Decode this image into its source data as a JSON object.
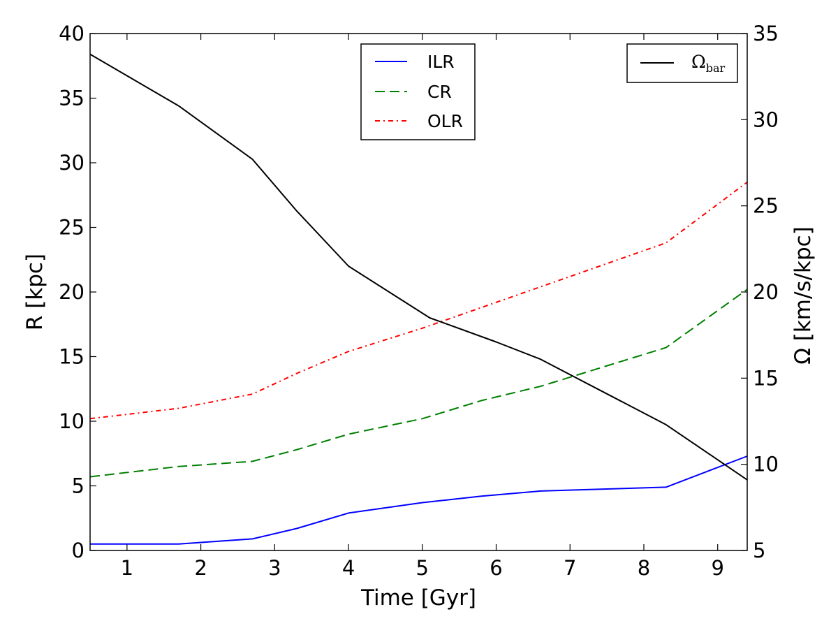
{
  "chart_data": {
    "type": "line",
    "xlabel": "Time [Gyr]",
    "ylabel_left": "R [kpc]",
    "ylabel_right": "Ω [km/s/kpc]",
    "xlim": [
      0.5,
      9.4
    ],
    "ylim_left": [
      0,
      40
    ],
    "ylim_right": [
      5,
      35
    ],
    "x_ticks": [
      "1",
      "2",
      "3",
      "4",
      "5",
      "6",
      "7",
      "8",
      "9"
    ],
    "y_ticks_left": [
      "0",
      "5",
      "10",
      "15",
      "20",
      "25",
      "30",
      "35",
      "40"
    ],
    "y_ticks_right": [
      "5",
      "10",
      "15",
      "20",
      "25",
      "30",
      "35"
    ],
    "grid": false,
    "series_left": [
      {
        "name": "ILR",
        "color": "#0000ff",
        "style": "solid",
        "x": [
          0.5,
          1.7,
          2.7,
          3.3,
          4.0,
          5.0,
          5.8,
          6.6,
          8.3,
          9.4
        ],
        "y": [
          0.5,
          0.5,
          0.9,
          1.7,
          2.9,
          3.7,
          4.2,
          4.6,
          4.9,
          7.3
        ]
      },
      {
        "name": "CR",
        "color": "#007f00",
        "style": "dashed",
        "x": [
          0.5,
          1.7,
          2.7,
          3.3,
          4.0,
          5.0,
          5.8,
          6.6,
          8.3,
          9.4
        ],
        "y": [
          5.7,
          6.5,
          6.9,
          7.8,
          9.0,
          10.2,
          11.6,
          12.7,
          15.7,
          20.2
        ]
      },
      {
        "name": "OLR",
        "color": "#ff0000",
        "style": "dashdot",
        "x": [
          0.5,
          1.7,
          2.7,
          3.3,
          4.0,
          5.0,
          5.8,
          6.6,
          8.3,
          9.4
        ],
        "y": [
          10.2,
          11.0,
          12.1,
          13.7,
          15.4,
          17.2,
          18.8,
          20.4,
          23.8,
          28.5
        ]
      }
    ],
    "series_right": [
      {
        "name": "Ω_bar",
        "color": "#000000",
        "style": "solid",
        "x": [
          0.5,
          1.7,
          2.7,
          3.3,
          4.0,
          5.1,
          6.0,
          6.6,
          8.3,
          9.4
        ],
        "y": [
          33.8,
          30.8,
          27.7,
          24.7,
          21.5,
          18.5,
          17.1,
          16.1,
          12.3,
          9.1
        ]
      }
    ],
    "legend_left": {
      "placement": "top-center",
      "entries": [
        "ILR",
        "CR",
        "OLR"
      ]
    },
    "legend_right": {
      "placement": "top-right",
      "symbol": "Ω",
      "subscript": "bar"
    }
  }
}
